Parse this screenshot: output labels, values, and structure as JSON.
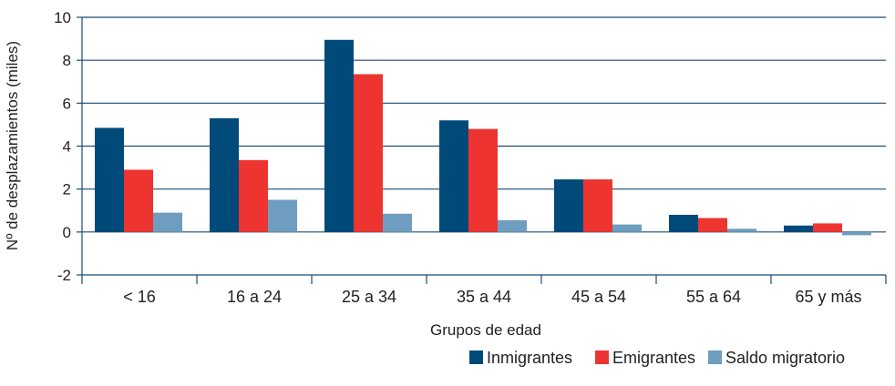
{
  "chart_data": {
    "type": "bar",
    "title": "",
    "xlabel": "Grupos de edad",
    "ylabel": "Nº de desplazamientos (miles)",
    "ylim": [
      -2,
      10
    ],
    "yticks": [
      "-2",
      "0",
      "2",
      "4",
      "6",
      "8",
      "10"
    ],
    "grid": true,
    "legend_position": "bottom-right",
    "categories": [
      "< 16",
      "16 a 24",
      "25 a 34",
      "35 a 44",
      "45 a 54",
      "55 a 64",
      "65 y más"
    ],
    "series": [
      {
        "name": "Inmigrantes",
        "color": "#004a7a",
        "values": [
          4.85,
          5.3,
          8.95,
          5.2,
          2.45,
          0.8,
          0.3
        ]
      },
      {
        "name": "Emigrantes",
        "color": "#ee3430",
        "values": [
          2.9,
          3.35,
          7.35,
          4.8,
          2.45,
          0.65,
          0.4
        ]
      },
      {
        "name": "Saldo migratorio",
        "color": "#6f9dc0",
        "values": [
          0.9,
          1.5,
          0.85,
          0.55,
          0.35,
          0.15,
          -0.15
        ]
      }
    ],
    "colors": {
      "axis": "#1b4c72",
      "grid": "#1b4c72"
    }
  }
}
